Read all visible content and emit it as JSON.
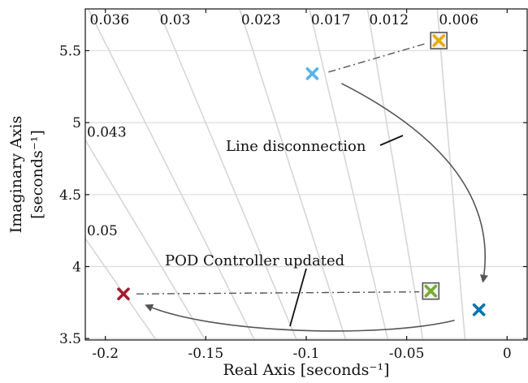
{
  "chart_data": {
    "type": "scatter",
    "title": "",
    "xlabel": "Real Axis [seconds⁻¹]",
    "ylabel_line1": "Imaginary Axis",
    "ylabel_line2": "[seconds⁻¹]",
    "xlim": [
      -0.21,
      0.01
    ],
    "ylim": [
      3.49,
      5.79
    ],
    "xticks": [
      -0.2,
      -0.15,
      -0.1,
      -0.05,
      0
    ],
    "xtick_labels": [
      "-0.2",
      "-0.15",
      "-0.1",
      "-0.05",
      "0"
    ],
    "yticks": [
      3.5,
      4,
      4.5,
      5,
      5.5
    ],
    "ytick_labels": [
      "3.5",
      "4",
      "4.5",
      "5",
      "5.5"
    ],
    "grid": true,
    "damping_lines": [
      {
        "zeta": 0.05,
        "label": "0.05"
      },
      {
        "zeta": 0.043,
        "label": "0.043"
      },
      {
        "zeta": 0.036,
        "label": "0.036"
      },
      {
        "zeta": 0.03,
        "label": "0.03"
      },
      {
        "zeta": 0.023,
        "label": "0.023"
      },
      {
        "zeta": 0.017,
        "label": "0.017"
      },
      {
        "zeta": 0.012,
        "label": "0.012"
      },
      {
        "zeta": 0.006,
        "label": "0.006"
      }
    ],
    "points": [
      {
        "x": -0.097,
        "y": 5.34,
        "color": "#56b4e9",
        "boxed": false
      },
      {
        "x": -0.034,
        "y": 5.57,
        "color": "#e6ab02",
        "boxed": true
      },
      {
        "x": -0.014,
        "y": 3.7,
        "color": "#0072b2",
        "boxed": false
      },
      {
        "x": -0.191,
        "y": 3.81,
        "color": "#a6192e",
        "boxed": false
      },
      {
        "x": -0.038,
        "y": 3.83,
        "color": "#77ac30",
        "boxed": true
      }
    ],
    "annotations": [
      {
        "text": "Line disconnection"
      },
      {
        "text": "POD Controller updated"
      }
    ]
  }
}
